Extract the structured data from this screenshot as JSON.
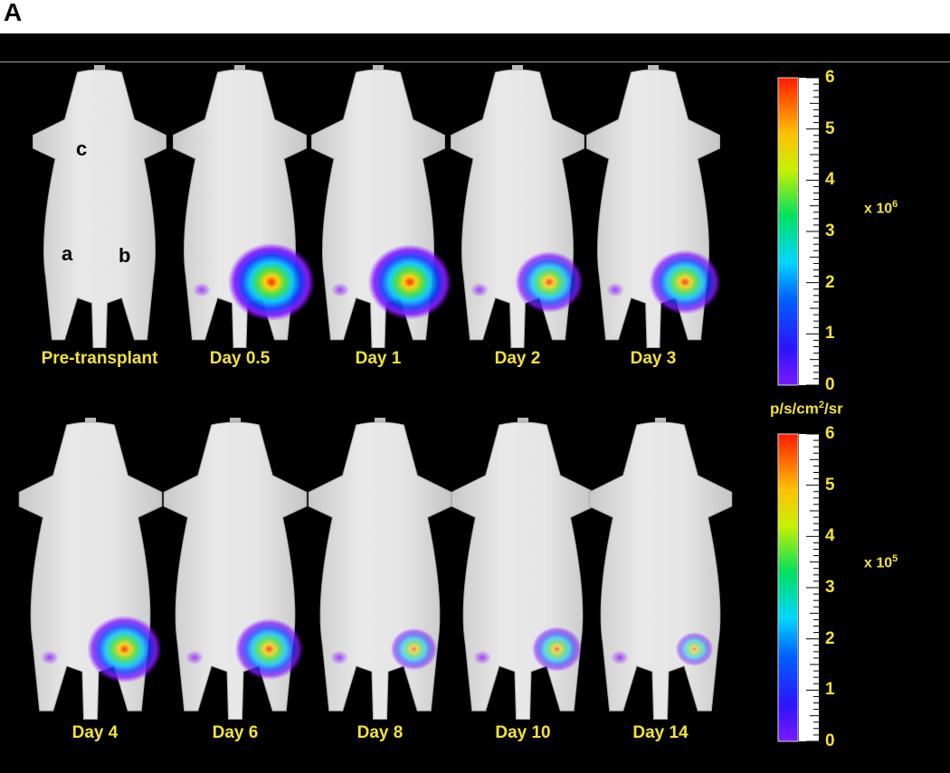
{
  "panel_label": "A",
  "site_labels": [
    "c",
    "a",
    "b"
  ],
  "top_row": [
    {
      "label": "Pre-transplant",
      "signal": 0
    },
    {
      "label": "Day 0.5",
      "signal": 1.0
    },
    {
      "label": "Day 1",
      "signal": 0.95
    },
    {
      "label": "Day 2",
      "signal": 0.7
    },
    {
      "label": "Day 3",
      "signal": 0.75
    }
  ],
  "bottom_row": [
    {
      "label": "Day 4",
      "signal": 0.8
    },
    {
      "label": "Day 6",
      "signal": 0.7
    },
    {
      "label": "Day 8",
      "signal": 0.35
    },
    {
      "label": "Day 10",
      "signal": 0.4
    },
    {
      "label": "Day 14",
      "signal": 0.2
    }
  ],
  "colorbar_top": {
    "ticks": [
      "0",
      "1",
      "2",
      "3",
      "4",
      "5",
      "6"
    ],
    "multiplier": "x 10",
    "exponent": "6"
  },
  "colorbar_bottom": {
    "ticks": [
      "0",
      "1",
      "2",
      "3",
      "4",
      "5",
      "6"
    ],
    "multiplier": "x 10",
    "exponent": "5"
  },
  "unit": {
    "base": "p/s/cm",
    "power": "2",
    "tail": "/sr"
  },
  "colors": {
    "label_yellow": "#f3e23a",
    "background": "#000000",
    "mouse_fur": "#e2e2e2"
  }
}
